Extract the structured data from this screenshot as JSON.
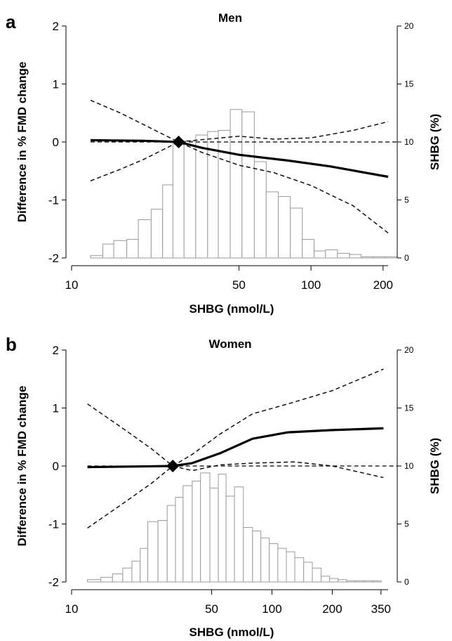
{
  "chart_data": [
    {
      "type": "line",
      "panel_letter": "a",
      "title": "Men",
      "xlabel": "SHBG (nmol/L)",
      "ylabel": "Difference in % FMD change",
      "y2label": "SHBG (%)",
      "x_scale": "log",
      "xlim": [
        10,
        210
      ],
      "x_ticks": [
        10,
        50,
        100,
        200
      ],
      "ylim": [
        -2,
        2
      ],
      "y_ticks": [
        -2,
        -1,
        0,
        1,
        2
      ],
      "y2lim": [
        0,
        20
      ],
      "y2_ticks": [
        0,
        5,
        10,
        15,
        20
      ],
      "reference_point": {
        "x": 28,
        "y": 0
      },
      "series": [
        {
          "role": "estimate",
          "style": "solid",
          "points": [
            [
              12,
              0.03
            ],
            [
              20,
              0.02
            ],
            [
              28,
              0
            ],
            [
              35,
              -0.1
            ],
            [
              50,
              -0.22
            ],
            [
              80,
              -0.32
            ],
            [
              120,
              -0.42
            ],
            [
              210,
              -0.6
            ]
          ]
        },
        {
          "role": "ci-upper",
          "style": "dashed",
          "points": [
            [
              12,
              0.72
            ],
            [
              16,
              0.5
            ],
            [
              20,
              0.3
            ],
            [
              25,
              0.1
            ],
            [
              28,
              0
            ],
            [
              35,
              0.04
            ],
            [
              50,
              0.1
            ],
            [
              70,
              0.05
            ],
            [
              100,
              0.07
            ],
            [
              150,
              0.2
            ],
            [
              210,
              0.35
            ]
          ]
        },
        {
          "role": "ci-lower",
          "style": "dashed",
          "points": [
            [
              12,
              -0.67
            ],
            [
              16,
              -0.47
            ],
            [
              20,
              -0.3
            ],
            [
              25,
              -0.1
            ],
            [
              28,
              0
            ],
            [
              35,
              -0.18
            ],
            [
              50,
              -0.4
            ],
            [
              70,
              -0.53
            ],
            [
              100,
              -0.75
            ],
            [
              150,
              -1.1
            ],
            [
              210,
              -1.57
            ]
          ]
        }
      ],
      "histogram": {
        "bin_edges": [
          12,
          13.5,
          15,
          17,
          19,
          21.5,
          24,
          26.5,
          29.5,
          33,
          37,
          41,
          46,
          51.5,
          58,
          65,
          73,
          82,
          92,
          103,
          115,
          129,
          145,
          162,
          182,
          204,
          229
        ],
        "percent": [
          0.2,
          1.2,
          1.5,
          1.6,
          3.3,
          4.2,
          6.3,
          10,
          10.1,
          10.6,
          10.9,
          11,
          12.8,
          12.6,
          8.3,
          5.7,
          5.3,
          4.3,
          1.6,
          0.6,
          0.7,
          0.4,
          0.3,
          0.1,
          0.1,
          0.1
        ]
      }
    },
    {
      "type": "line",
      "panel_letter": "b",
      "title": "Women",
      "xlabel": "SHBG (nmol/L)",
      "ylabel": "Difference in % FMD change",
      "y2label": "SHBG (%)",
      "x_scale": "log",
      "xlim": [
        10,
        380
      ],
      "x_ticks": [
        10,
        50,
        100,
        200,
        350
      ],
      "ylim": [
        -2,
        2
      ],
      "y_ticks": [
        -2,
        -1,
        0,
        1,
        2
      ],
      "y2lim": [
        0,
        20
      ],
      "y2_ticks": [
        0,
        5,
        10,
        15,
        20
      ],
      "reference_point": {
        "x": 32,
        "y": 0
      },
      "series": [
        {
          "role": "estimate",
          "style": "solid",
          "points": [
            [
              12,
              -0.02
            ],
            [
              20,
              -0.01
            ],
            [
              32,
              0
            ],
            [
              40,
              0.05
            ],
            [
              55,
              0.22
            ],
            [
              80,
              0.47
            ],
            [
              120,
              0.58
            ],
            [
              200,
              0.62
            ],
            [
              360,
              0.65
            ]
          ]
        },
        {
          "role": "ci-upper",
          "style": "dashed",
          "points": [
            [
              12,
              1.07
            ],
            [
              18,
              0.65
            ],
            [
              25,
              0.3
            ],
            [
              32,
              0
            ],
            [
              40,
              0.2
            ],
            [
              55,
              0.55
            ],
            [
              80,
              0.9
            ],
            [
              120,
              1.07
            ],
            [
              200,
              1.3
            ],
            [
              360,
              1.67
            ]
          ]
        },
        {
          "role": "ci-lower",
          "style": "dashed",
          "points": [
            [
              12,
              -1.07
            ],
            [
              18,
              -0.65
            ],
            [
              25,
              -0.3
            ],
            [
              32,
              0
            ],
            [
              40,
              -0.08
            ],
            [
              55,
              0.02
            ],
            [
              80,
              0.05
            ],
            [
              130,
              0.07
            ],
            [
              200,
              0
            ],
            [
              360,
              -0.2
            ]
          ]
        }
      ],
      "histogram": {
        "bin_edges": [
          12,
          14,
          16,
          18,
          20,
          22,
          24,
          27,
          30,
          33,
          36,
          40,
          44,
          49,
          54,
          59,
          65,
          72,
          80,
          88,
          97,
          107,
          118,
          130,
          144,
          159,
          176,
          194,
          214,
          236,
          261,
          288,
          318,
          351
        ],
        "percent": [
          0.2,
          0.4,
          0.7,
          1.2,
          1.8,
          2.9,
          5.2,
          5.3,
          6.6,
          7.3,
          8.3,
          8.7,
          9.4,
          8.1,
          9.3,
          7.4,
          8.2,
          4.7,
          4.4,
          3.8,
          3.3,
          2.9,
          2.6,
          2.1,
          1.7,
          1.2,
          0.5,
          0.3,
          0.2,
          0.1,
          0.1,
          0.1,
          0.1
        ]
      }
    }
  ]
}
